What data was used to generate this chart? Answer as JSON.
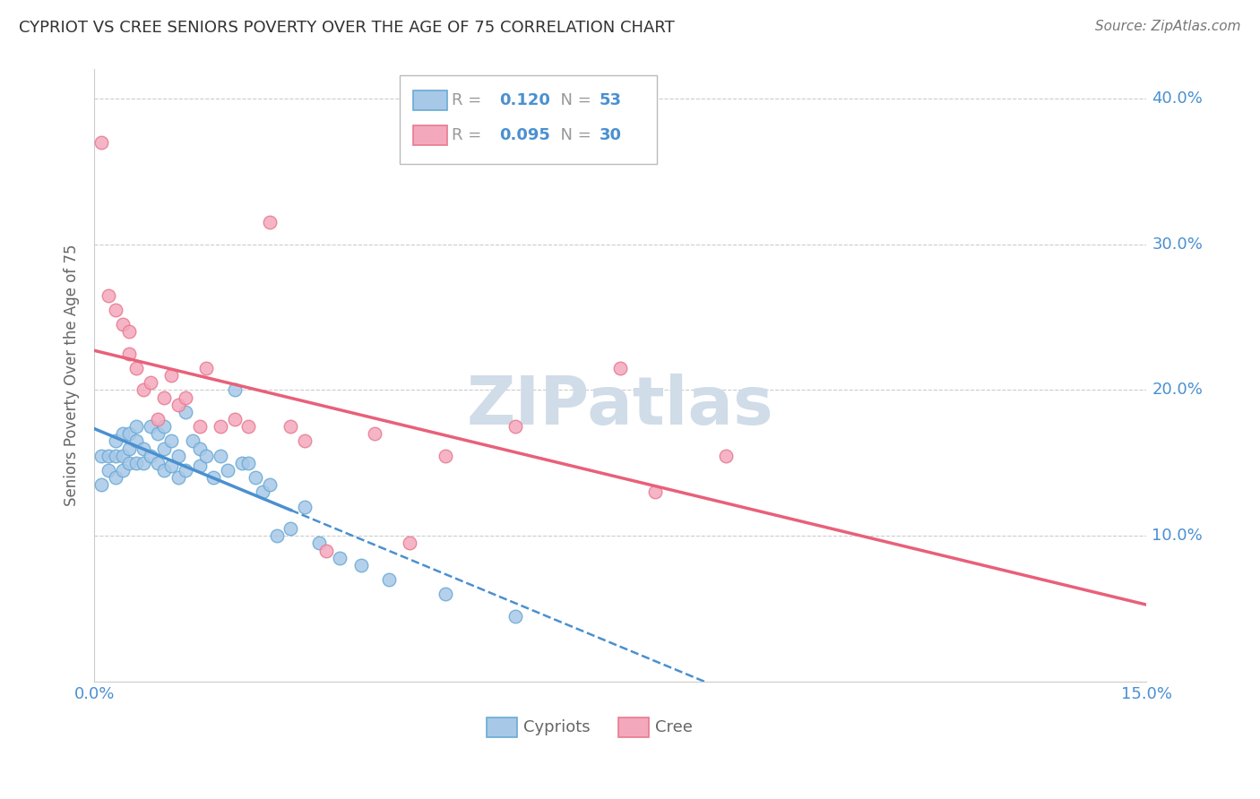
{
  "title": "CYPRIOT VS CREE SENIORS POVERTY OVER THE AGE OF 75 CORRELATION CHART",
  "source": "Source: ZipAtlas.com",
  "ylabel": "Seniors Poverty Over the Age of 75",
  "xlim": [
    0.0,
    0.15
  ],
  "ylim": [
    0.0,
    0.42
  ],
  "ytick_positions": [
    0.0,
    0.1,
    0.2,
    0.3,
    0.4
  ],
  "ytick_labels": [
    "",
    "10.0%",
    "20.0%",
    "30.0%",
    "40.0%"
  ],
  "cypriot_color": "#a8c8e8",
  "cree_color": "#f4a8bc",
  "cypriot_edge_color": "#6aaad4",
  "cree_edge_color": "#e87a90",
  "cypriot_line_color": "#4a90d0",
  "cree_line_color": "#e8607a",
  "r_cypriot": 0.12,
  "n_cypriot": 53,
  "r_cree": 0.095,
  "n_cree": 30,
  "cypriot_x": [
    0.001,
    0.001,
    0.002,
    0.002,
    0.003,
    0.003,
    0.003,
    0.004,
    0.004,
    0.004,
    0.005,
    0.005,
    0.005,
    0.006,
    0.006,
    0.006,
    0.007,
    0.007,
    0.008,
    0.008,
    0.009,
    0.009,
    0.01,
    0.01,
    0.01,
    0.011,
    0.011,
    0.012,
    0.012,
    0.013,
    0.013,
    0.014,
    0.015,
    0.015,
    0.016,
    0.017,
    0.018,
    0.019,
    0.02,
    0.021,
    0.022,
    0.023,
    0.024,
    0.025,
    0.026,
    0.028,
    0.03,
    0.032,
    0.035,
    0.038,
    0.042,
    0.05,
    0.06
  ],
  "cypriot_y": [
    0.155,
    0.135,
    0.155,
    0.145,
    0.165,
    0.155,
    0.14,
    0.17,
    0.155,
    0.145,
    0.17,
    0.16,
    0.15,
    0.175,
    0.165,
    0.15,
    0.16,
    0.15,
    0.175,
    0.155,
    0.17,
    0.15,
    0.175,
    0.16,
    0.145,
    0.165,
    0.148,
    0.155,
    0.14,
    0.185,
    0.145,
    0.165,
    0.16,
    0.148,
    0.155,
    0.14,
    0.155,
    0.145,
    0.2,
    0.15,
    0.15,
    0.14,
    0.13,
    0.135,
    0.1,
    0.105,
    0.12,
    0.095,
    0.085,
    0.08,
    0.07,
    0.06,
    0.045
  ],
  "cree_x": [
    0.001,
    0.002,
    0.003,
    0.004,
    0.005,
    0.005,
    0.006,
    0.007,
    0.008,
    0.009,
    0.01,
    0.011,
    0.012,
    0.013,
    0.015,
    0.016,
    0.018,
    0.02,
    0.022,
    0.025,
    0.028,
    0.03,
    0.033,
    0.04,
    0.045,
    0.05,
    0.06,
    0.075,
    0.08,
    0.09
  ],
  "cree_y": [
    0.37,
    0.265,
    0.255,
    0.245,
    0.24,
    0.225,
    0.215,
    0.2,
    0.205,
    0.18,
    0.195,
    0.21,
    0.19,
    0.195,
    0.175,
    0.215,
    0.175,
    0.18,
    0.175,
    0.315,
    0.175,
    0.165,
    0.09,
    0.17,
    0.095,
    0.155,
    0.175,
    0.215,
    0.13,
    0.155
  ],
  "background_color": "#ffffff",
  "watermark": "ZIPatlas",
  "watermark_color": "#d0dce8",
  "grid_color": "#cccccc",
  "label_color": "#4a90d0",
  "text_color": "#666666"
}
